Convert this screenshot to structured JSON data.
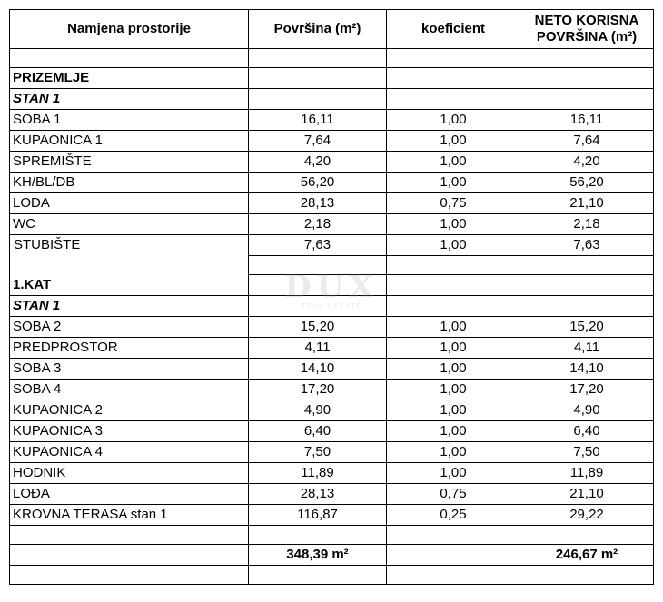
{
  "headers": {
    "name": "Namjena prostorije",
    "area": "Površina (m²)",
    "coef": "koeficient",
    "net": "NETO KORISNA POVRŠINA (m²)"
  },
  "rows": [
    {
      "type": "blank"
    },
    {
      "type": "section",
      "name": "PRIZEMLJE"
    },
    {
      "type": "subsection",
      "name": "STAN 1"
    },
    {
      "type": "room",
      "name": "SOBA 1",
      "area": "16,11",
      "coef": "1,00",
      "net": "16,11"
    },
    {
      "type": "room",
      "name": "KUPAONICA 1",
      "area": "7,64",
      "coef": "1,00",
      "net": "7,64"
    },
    {
      "type": "room",
      "name": "SPREMIŠTE",
      "area": "4,20",
      "coef": "1,00",
      "net": "4,20"
    },
    {
      "type": "room",
      "name": "KH/BL/DB",
      "area": "56,20",
      "coef": "1,00",
      "net": "56,20"
    },
    {
      "type": "room",
      "name": "LOĐA",
      "area": "28,13",
      "coef": "0,75",
      "net": "21,10"
    },
    {
      "type": "room",
      "name": "WC",
      "area": "2,18",
      "coef": "1,00",
      "net": "2,18"
    },
    {
      "type": "room",
      "name": "STUBIŠTE",
      "area": "7,63",
      "coef": "1,00",
      "net": "7,63",
      "open": true
    },
    {
      "type": "blank",
      "open": true
    },
    {
      "type": "section",
      "name": "1.KAT"
    },
    {
      "type": "subsection",
      "name": "STAN 1"
    },
    {
      "type": "room",
      "name": "SOBA 2",
      "area": "15,20",
      "coef": "1,00",
      "net": "15,20"
    },
    {
      "type": "room",
      "name": "PREDPROSTOR",
      "area": "4,11",
      "coef": "1,00",
      "net": "4,11"
    },
    {
      "type": "room",
      "name": "SOBA 3",
      "area": "14,10",
      "coef": "1,00",
      "net": "14,10"
    },
    {
      "type": "room",
      "name": "SOBA 4",
      "area": "17,20",
      "coef": "1,00",
      "net": "17,20"
    },
    {
      "type": "room",
      "name": "KUPAONICA 2",
      "area": "4,90",
      "coef": "1,00",
      "net": "4,90"
    },
    {
      "type": "room",
      "name": "KUPAONICA 3",
      "area": "6,40",
      "coef": "1,00",
      "net": "6,40"
    },
    {
      "type": "room",
      "name": "KUPAONICA 4",
      "area": "7,50",
      "coef": "1,00",
      "net": "7,50"
    },
    {
      "type": "room",
      "name": "HODNIK",
      "area": "11,89",
      "coef": "1,00",
      "net": "11,89"
    },
    {
      "type": "room",
      "name": "LOĐA",
      "area": "28,13",
      "coef": "0,75",
      "net": "21,10"
    },
    {
      "type": "room",
      "name": "KROVNA TERASA stan 1",
      "area": "116,87",
      "coef": "0,25",
      "net": "29,22"
    },
    {
      "type": "blank"
    },
    {
      "type": "total",
      "area": "348,39 m²",
      "net": "246,67 m²"
    },
    {
      "type": "blank"
    }
  ],
  "watermark": {
    "logo": "DUX",
    "sub": "REAL ESTATE"
  }
}
